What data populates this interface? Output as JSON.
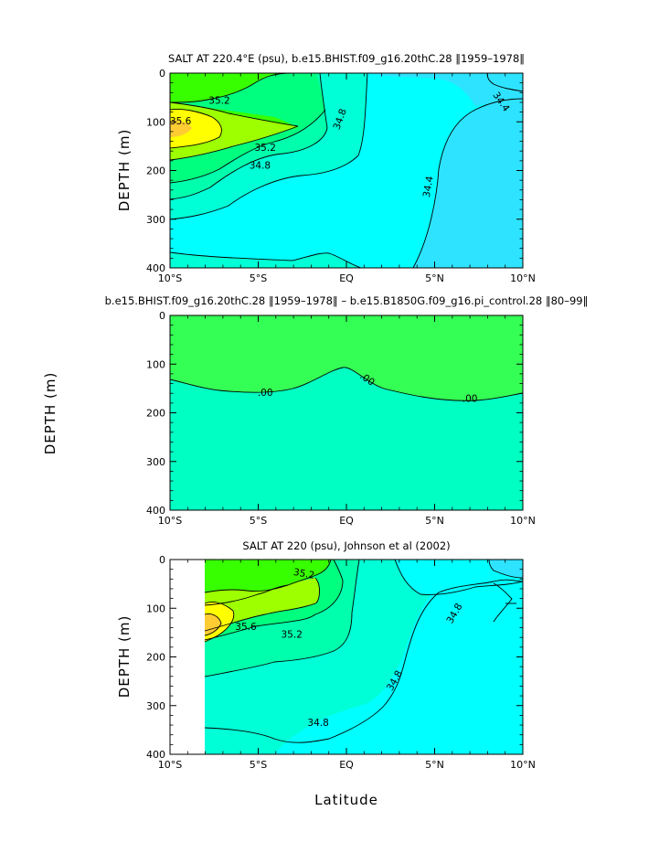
{
  "colors": {
    "s34_2": "#2ee3ff",
    "s34_4": "#00ffff",
    "s34_6": "#00ffd6",
    "s34_8": "#00ffad",
    "s35_0": "#00ff7f",
    "s35_2": "#38ff00",
    "s35_4": "#9dff00",
    "s35_6": "#ffff00",
    "s35_8": "#ffcc33",
    "diff_pos": "#34ff55",
    "diff_neg": "#00ffc3"
  },
  "chart_data": [
    {
      "type": "contour",
      "title": "SALT AT 220.4°E (psu), b.e15.BHIST.f09_g16.20thC.28 ‖1959–1978‖",
      "xlabel": "",
      "ylabel": "DEPTH (m)",
      "xlim": [
        -10,
        10
      ],
      "ylim": [
        400,
        0
      ],
      "xticks": [
        "10°S",
        "5°S",
        "EQ",
        "5°N",
        "10°N"
      ],
      "yticks": [
        "0",
        "100",
        "200",
        "300",
        "400"
      ],
      "contour_labels": [
        {
          "text": "35.2",
          "x": -7.2,
          "y": 55
        },
        {
          "text": "35.6",
          "x": -9.4,
          "y": 98
        },
        {
          "text": "35.2",
          "x": -4.6,
          "y": 152
        },
        {
          "text": "34.8",
          "x": -4.9,
          "y": 189
        },
        {
          "text": "34.8",
          "x": -0.4,
          "y": 94
        },
        {
          "text": "34.4",
          "x": 8.8,
          "y": 58
        },
        {
          "text": "34.4",
          "x": 4.6,
          "y": 233
        }
      ]
    },
    {
      "type": "contour",
      "title": "b.e15.BHIST.f09_g16.20thC.28 ‖1959–1978‖ – b.e15.B1850G.f09_g16.pi_control.28 ‖80–99‖",
      "xlabel": "",
      "ylabel": "DEPTH (m)",
      "xlim": [
        -10,
        10
      ],
      "ylim": [
        400,
        0
      ],
      "xticks": [
        "10°S",
        "5°S",
        "EQ",
        "5°N",
        "10°N"
      ],
      "yticks": [
        "0",
        "100",
        "200",
        "300",
        "400"
      ],
      "contour_labels": [
        {
          "text": ".00",
          "x": -4.6,
          "y": 158
        },
        {
          "text": ".00",
          "x": 1.2,
          "y": 130
        },
        {
          "text": ".00",
          "x": 7.0,
          "y": 170
        }
      ]
    },
    {
      "type": "contour",
      "title": "SALT AT 220 (psu), Johnson et al (2002)",
      "xlabel": "Latitude",
      "ylabel": "DEPTH (m)",
      "xlim": [
        -10,
        10
      ],
      "ylim": [
        400,
        0
      ],
      "xticks": [
        "10°S",
        "5°S",
        "EQ",
        "5°N",
        "10°N"
      ],
      "yticks": [
        "0",
        "100",
        "200",
        "300",
        "400"
      ],
      "contour_labels": [
        {
          "text": "35.2",
          "x": -2.4,
          "y": 28
        },
        {
          "text": "35.6",
          "x": -5.7,
          "y": 137
        },
        {
          "text": "35.2",
          "x": -3.1,
          "y": 153
        },
        {
          "text": "34.8",
          "x": 6.1,
          "y": 110
        },
        {
          "text": "34.8",
          "x": 2.7,
          "y": 248
        },
        {
          "text": "34.8",
          "x": -1.6,
          "y": 334
        }
      ]
    }
  ]
}
